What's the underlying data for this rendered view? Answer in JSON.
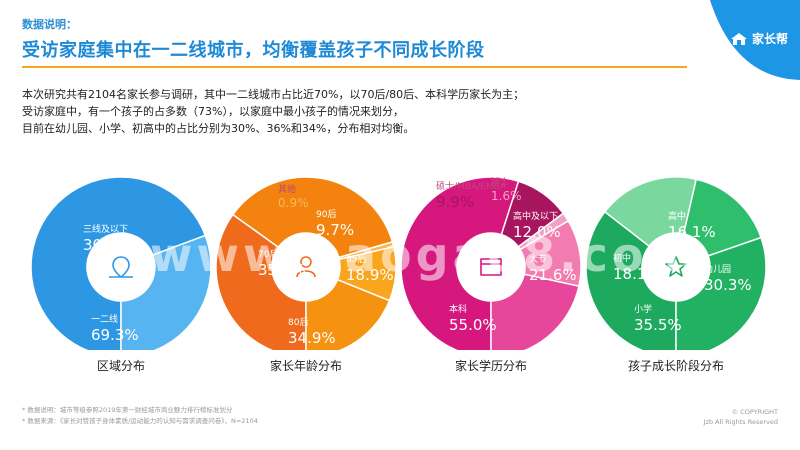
{
  "header": {
    "kicker": "数据说明：",
    "headline": "受访家庭集中在一二线城市，均衡覆盖孩子不同成长阶段"
  },
  "brand": {
    "name": "家长帮",
    "color": "#1e96e6"
  },
  "description": [
    "本次研究共有2104名家长参与调研，其中一二线城市占比近70%，以70后/80后、本科学历家长为主；",
    "受访家庭中，有一个孩子的占多数（73%），以家庭中最小孩子的情况来划分，",
    "目前在幼儿园、小学、初高中的占比分别为30%、36%和34%，分布相对均衡。"
  ],
  "chart_data": [
    {
      "type": "pie",
      "title": "区域分布",
      "icon": "location-pin-icon",
      "slices": [
        {
          "label": "一二线",
          "value": 69.3,
          "display": "69.3%",
          "color": "#2e97e4"
        },
        {
          "label": "三线及以下",
          "value": 30.7,
          "display": "30.7%",
          "color": "#56b4f0"
        }
      ]
    },
    {
      "type": "pie",
      "title": "家长年龄分布",
      "icon": "person-icon",
      "slices": [
        {
          "label": "80后",
          "value": 34.9,
          "display": "34.9%",
          "color": "#f06a1d"
        },
        {
          "label": "70后",
          "value": 35.6,
          "display": "35.6%",
          "color": "#f4820e"
        },
        {
          "label": "其他",
          "value": 0.9,
          "display": "0.9%",
          "color": "#f7b955"
        },
        {
          "label": "90后",
          "value": 9.7,
          "display": "9.7%",
          "color": "#f9a51e"
        },
        {
          "label": "85后",
          "value": 18.9,
          "display": "18.9%",
          "color": "#f5920f"
        }
      ]
    },
    {
      "type": "pie",
      "title": "家长学历分布",
      "icon": "book-icon",
      "slices": [
        {
          "label": "本科",
          "value": 55.0,
          "display": "55.0%",
          "color": "#d6177e"
        },
        {
          "label": "硕士/MBA/EMBA",
          "value": 9.9,
          "display": "9.9%",
          "color": "#a8155f"
        },
        {
          "label": "博士",
          "value": 1.6,
          "display": "1.6%",
          "color": "#f2a0c5"
        },
        {
          "label": "高中及以下",
          "value": 12.0,
          "display": "12.0%",
          "color": "#f27cb0"
        },
        {
          "label": "大专",
          "value": 21.6,
          "display": "21.6%",
          "color": "#e6479a"
        }
      ]
    },
    {
      "type": "pie",
      "title": "孩子成长阶段分布",
      "icon": "star-icon",
      "slices": [
        {
          "label": "小学",
          "value": 35.5,
          "display": "35.5%",
          "color": "#1daa5e"
        },
        {
          "label": "初中",
          "value": 18.1,
          "display": "18.1%",
          "color": "#7ad79e"
        },
        {
          "label": "高中",
          "value": 16.1,
          "display": "16.1%",
          "color": "#2fbf6c"
        },
        {
          "label": "幼儿园",
          "value": 30.3,
          "display": "30.3%",
          "color": "#22b062"
        }
      ]
    }
  ],
  "footnotes": [
    "* 数据说明：城市等级参照2019年第一财经城市商业魅力排行榜标准划分",
    "* 数据来源：《家长对赞孩子身体素质/运动能力的认知与需求调查问卷》，N=2104"
  ],
  "copyright": [
    "© COPYRIGHT",
    "Jzb All Rights Reserved"
  ],
  "watermark": "www.baogao8.com"
}
